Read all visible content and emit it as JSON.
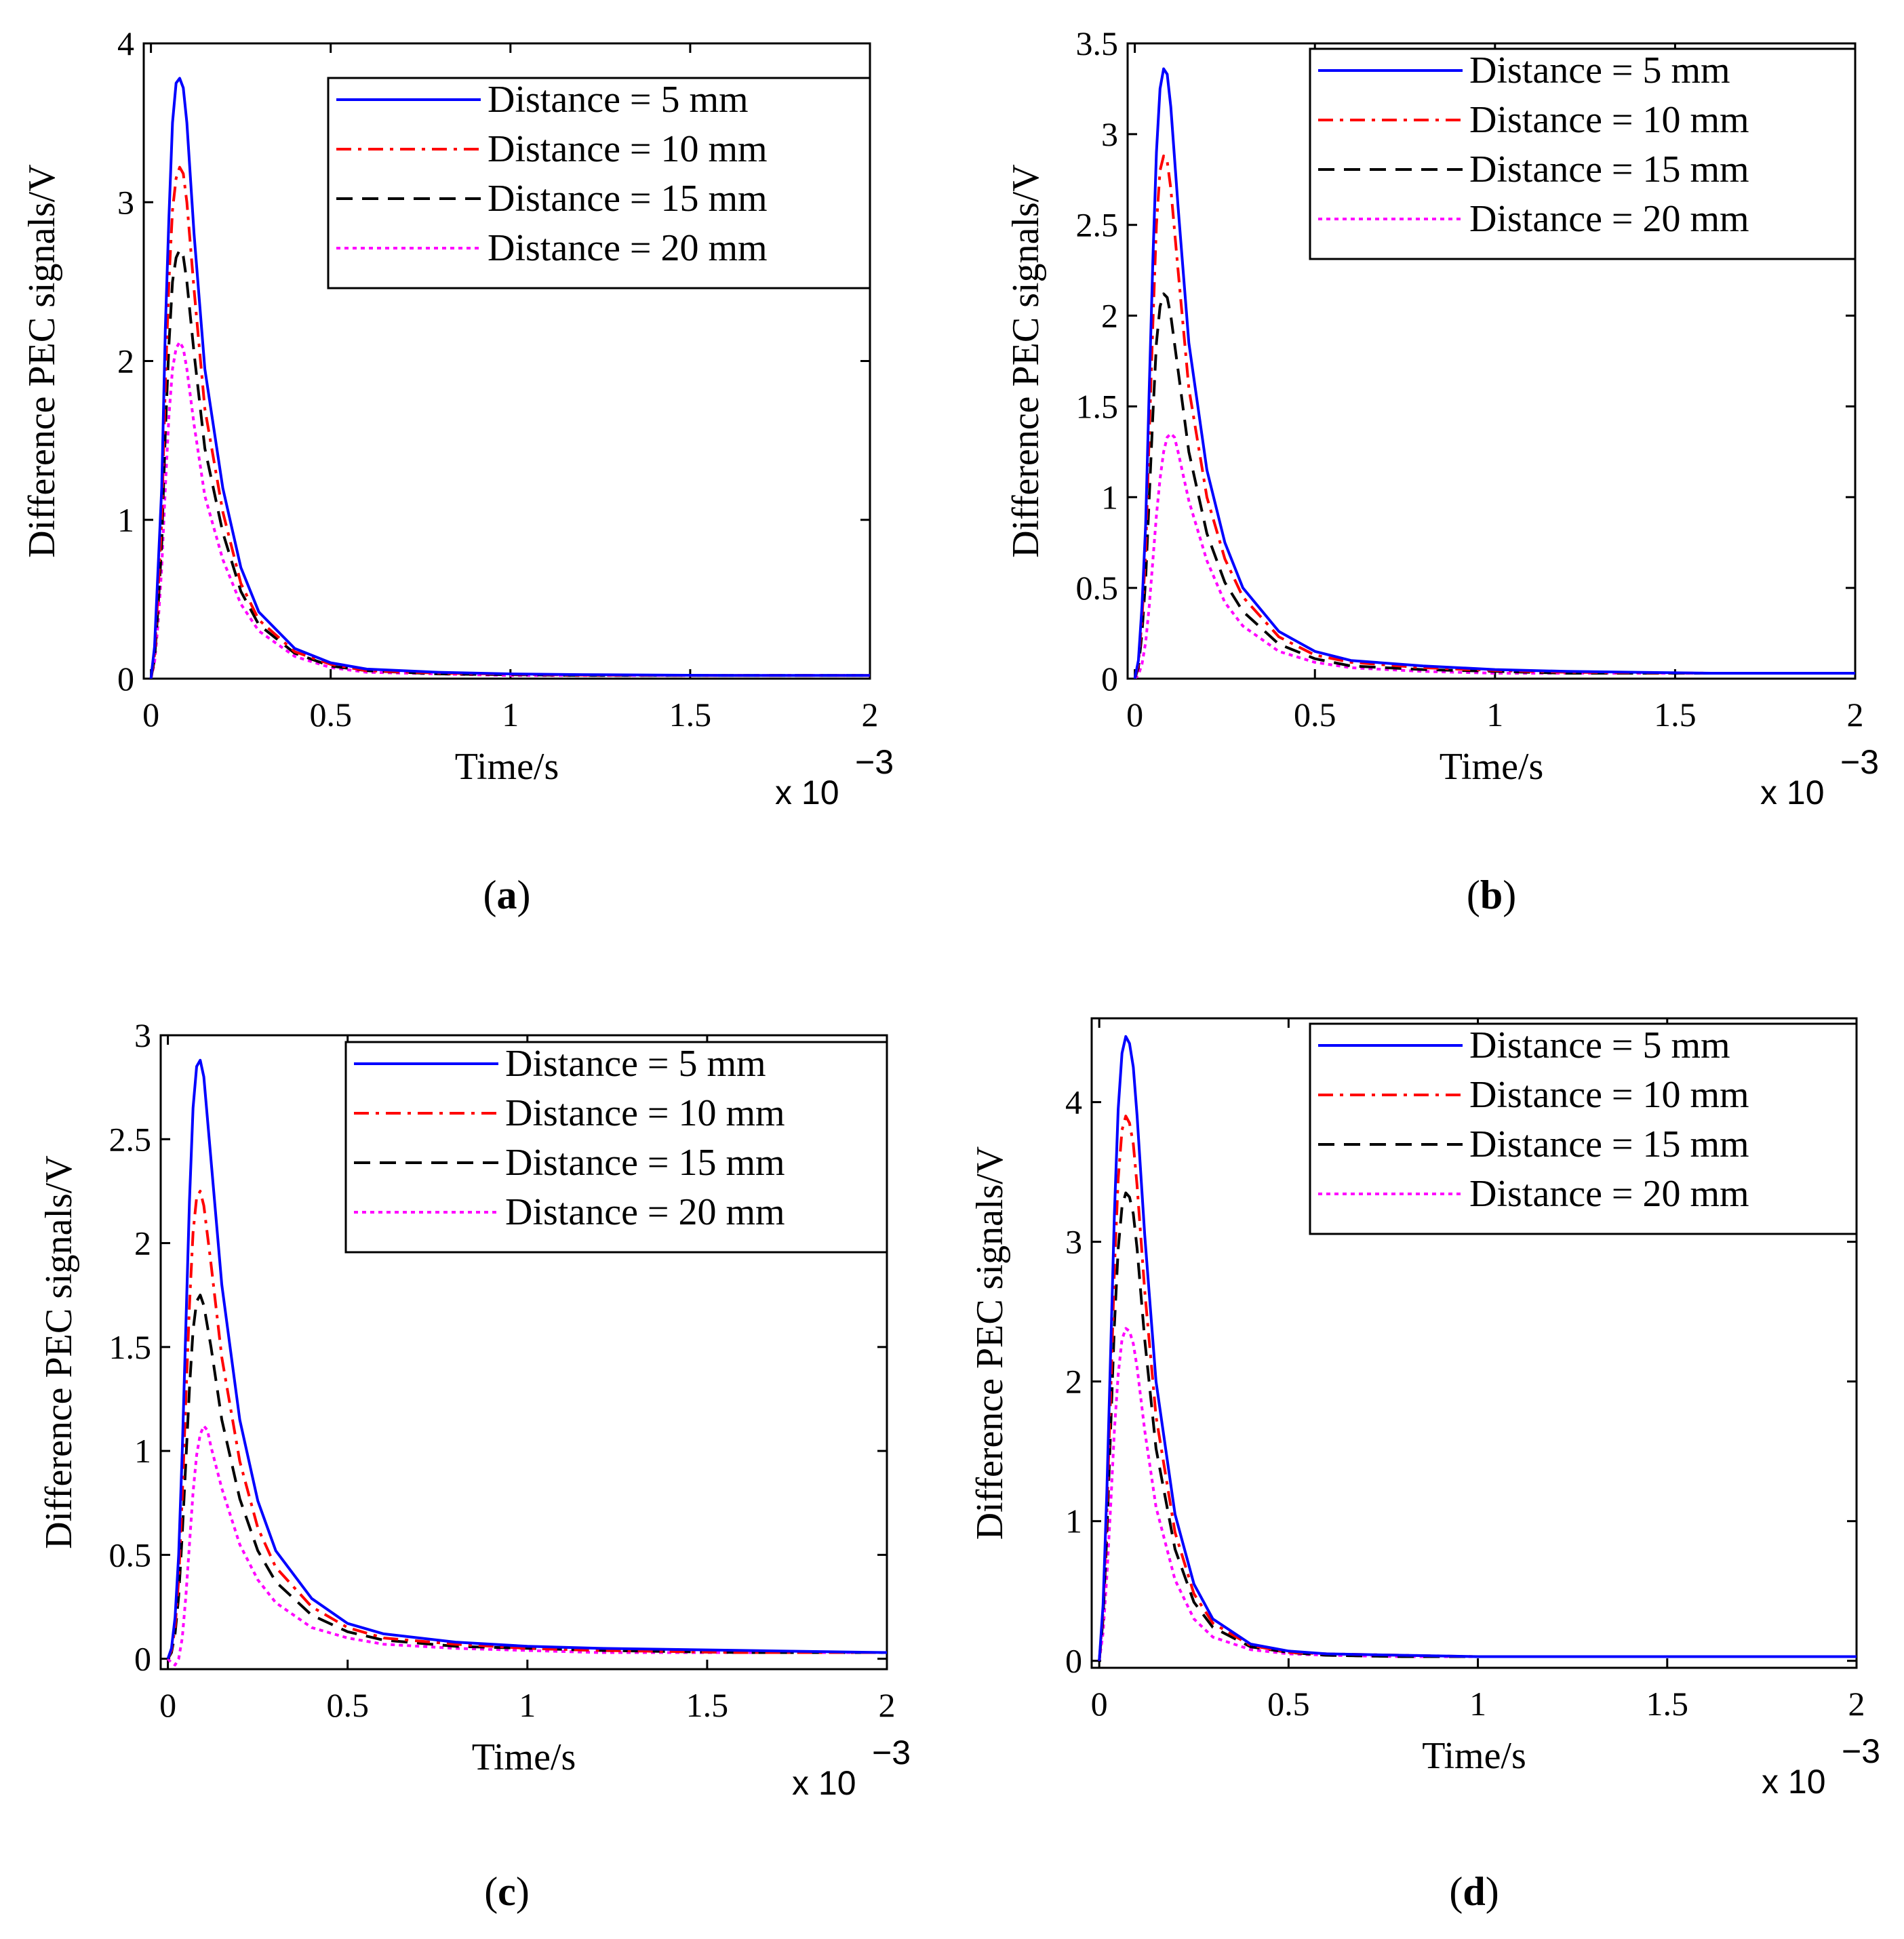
{
  "chart_data": [
    {
      "type": "line",
      "panel_label": "a",
      "xlabel": "Time/s",
      "ylabel": "Difference PEC signals/V",
      "x_multiplier": "x 10",
      "x_multiplier_exp": "−3",
      "xlim": [
        -0.02,
        2
      ],
      "ylim": [
        0,
        4
      ],
      "xticks": [
        0,
        0.5,
        1,
        1.5,
        2
      ],
      "xtick_labels": [
        "0",
        "0.5",
        "1",
        "1.5",
        "2"
      ],
      "yticks": [
        0,
        1,
        2,
        3,
        4
      ],
      "ytick_labels": [
        "0",
        "1",
        "2",
        "3",
        "4"
      ],
      "legend_position": "top-right",
      "series": [
        {
          "name": "Distance = 5 mm",
          "color": "#0000ff",
          "dash": "solid",
          "x": [
            0,
            0.01,
            0.02,
            0.03,
            0.04,
            0.05,
            0.06,
            0.07,
            0.08,
            0.09,
            0.1,
            0.12,
            0.15,
            0.2,
            0.25,
            0.3,
            0.4,
            0.5,
            0.6,
            0.8,
            1.0,
            1.2,
            1.6,
            2.0
          ],
          "values": [
            0,
            0.2,
            0.7,
            1.2,
            2.2,
            2.9,
            3.5,
            3.75,
            3.78,
            3.72,
            3.5,
            2.8,
            1.95,
            1.2,
            0.7,
            0.42,
            0.19,
            0.1,
            0.06,
            0.04,
            0.03,
            0.025,
            0.02,
            0.02
          ]
        },
        {
          "name": "Distance = 10 mm",
          "color": "#ff0000",
          "dash": "dashdot",
          "x": [
            0,
            0.01,
            0.02,
            0.03,
            0.04,
            0.05,
            0.06,
            0.07,
            0.08,
            0.09,
            0.1,
            0.12,
            0.15,
            0.2,
            0.25,
            0.3,
            0.4,
            0.5,
            0.6,
            0.8,
            1.0,
            1.2,
            1.6,
            2.0
          ],
          "values": [
            0,
            0.15,
            0.55,
            1.0,
            1.85,
            2.5,
            2.95,
            3.15,
            3.22,
            3.18,
            3.0,
            2.45,
            1.7,
            1.05,
            0.6,
            0.37,
            0.17,
            0.09,
            0.05,
            0.035,
            0.028,
            0.022,
            0.02,
            0.02
          ]
        },
        {
          "name": "Distance = 15 mm",
          "color": "#000000",
          "dash": "dash",
          "x": [
            0,
            0.01,
            0.02,
            0.03,
            0.04,
            0.05,
            0.06,
            0.07,
            0.08,
            0.09,
            0.1,
            0.12,
            0.15,
            0.2,
            0.25,
            0.3,
            0.4,
            0.5,
            0.6,
            0.8,
            1.0,
            1.2,
            1.6,
            2.0
          ],
          "values": [
            0,
            0.12,
            0.45,
            0.85,
            1.55,
            2.1,
            2.5,
            2.65,
            2.7,
            2.66,
            2.5,
            2.05,
            1.45,
            0.92,
            0.55,
            0.34,
            0.16,
            0.08,
            0.05,
            0.03,
            0.025,
            0.02,
            0.02,
            0.02
          ]
        },
        {
          "name": "Distance = 20 mm",
          "color": "#ff00ff",
          "dash": "dot",
          "x": [
            0,
            0.01,
            0.02,
            0.03,
            0.04,
            0.05,
            0.06,
            0.07,
            0.08,
            0.09,
            0.1,
            0.12,
            0.15,
            0.2,
            0.25,
            0.3,
            0.4,
            0.5,
            0.6,
            0.8,
            1.0,
            1.2,
            1.6,
            2.0
          ],
          "values": [
            0,
            0.1,
            0.35,
            0.7,
            1.2,
            1.65,
            1.95,
            2.08,
            2.12,
            2.08,
            1.95,
            1.6,
            1.15,
            0.75,
            0.47,
            0.3,
            0.14,
            0.07,
            0.04,
            0.03,
            0.02,
            0.02,
            0.02,
            0.02
          ]
        }
      ]
    },
    {
      "type": "line",
      "panel_label": "b",
      "xlabel": "Time/s",
      "ylabel": "Difference PEC signals/V",
      "x_multiplier": "x 10",
      "x_multiplier_exp": "−3",
      "xlim": [
        -0.02,
        2
      ],
      "ylim": [
        0,
        3.5
      ],
      "xticks": [
        0,
        0.5,
        1,
        1.5,
        2
      ],
      "xtick_labels": [
        "0",
        "0.5",
        "1",
        "1.5",
        "2"
      ],
      "yticks": [
        0,
        0.5,
        1,
        1.5,
        2,
        2.5,
        3,
        3.5
      ],
      "ytick_labels": [
        "0",
        "0.5",
        "1",
        "1.5",
        "2",
        "2.5",
        "3",
        "3.5"
      ],
      "legend_position": "top-right",
      "series": [
        {
          "name": "Distance = 5 mm",
          "color": "#0000ff",
          "dash": "solid",
          "x": [
            0,
            0.01,
            0.02,
            0.03,
            0.04,
            0.05,
            0.06,
            0.07,
            0.08,
            0.09,
            0.1,
            0.12,
            0.15,
            0.2,
            0.25,
            0.3,
            0.4,
            0.5,
            0.6,
            0.8,
            1.0,
            1.2,
            1.6,
            2.0
          ],
          "values": [
            0,
            0.1,
            0.4,
            0.85,
            1.6,
            2.3,
            2.9,
            3.25,
            3.36,
            3.33,
            3.15,
            2.6,
            1.85,
            1.15,
            0.75,
            0.5,
            0.26,
            0.15,
            0.1,
            0.07,
            0.05,
            0.04,
            0.03,
            0.03
          ]
        },
        {
          "name": "Distance = 10 mm",
          "color": "#ff0000",
          "dash": "dashdot",
          "x": [
            0,
            0.01,
            0.02,
            0.03,
            0.04,
            0.05,
            0.06,
            0.07,
            0.08,
            0.09,
            0.1,
            0.12,
            0.15,
            0.2,
            0.25,
            0.3,
            0.4,
            0.5,
            0.6,
            0.8,
            1.0,
            1.2,
            1.6,
            2.0
          ],
          "values": [
            0,
            0.08,
            0.33,
            0.7,
            1.35,
            1.95,
            2.5,
            2.8,
            2.88,
            2.85,
            2.7,
            2.25,
            1.6,
            1.0,
            0.66,
            0.45,
            0.23,
            0.13,
            0.09,
            0.06,
            0.045,
            0.035,
            0.03,
            0.03
          ]
        },
        {
          "name": "Distance = 15 mm",
          "color": "#000000",
          "dash": "dash",
          "x": [
            0,
            0.01,
            0.02,
            0.03,
            0.04,
            0.05,
            0.06,
            0.07,
            0.08,
            0.09,
            0.1,
            0.12,
            0.15,
            0.2,
            0.25,
            0.3,
            0.4,
            0.5,
            0.6,
            0.8,
            1.0,
            1.2,
            1.6,
            2.0
          ],
          "values": [
            0,
            0.06,
            0.25,
            0.55,
            1.0,
            1.45,
            1.85,
            2.05,
            2.12,
            2.1,
            2.0,
            1.7,
            1.25,
            0.8,
            0.53,
            0.37,
            0.19,
            0.11,
            0.07,
            0.05,
            0.04,
            0.03,
            0.03,
            0.03
          ]
        },
        {
          "name": "Distance = 20 mm",
          "color": "#ff00ff",
          "dash": "dot",
          "x": [
            0,
            0.01,
            0.02,
            0.03,
            0.04,
            0.05,
            0.06,
            0.07,
            0.08,
            0.09,
            0.1,
            0.11,
            0.12,
            0.15,
            0.2,
            0.25,
            0.3,
            0.4,
            0.5,
            0.6,
            0.8,
            1.0,
            1.2,
            1.6,
            2.0
          ],
          "values": [
            0,
            0.02,
            0.08,
            0.2,
            0.4,
            0.65,
            0.9,
            1.1,
            1.25,
            1.33,
            1.35,
            1.33,
            1.25,
            0.98,
            0.65,
            0.42,
            0.29,
            0.15,
            0.09,
            0.06,
            0.04,
            0.03,
            0.03,
            0.03,
            0.03
          ]
        }
      ]
    },
    {
      "type": "line",
      "panel_label": "c",
      "xlabel": "Time/s",
      "ylabel": "Difference PEC signals/V",
      "x_multiplier": "x 10",
      "x_multiplier_exp": "−3",
      "xlim": [
        -0.02,
        2
      ],
      "ylim": [
        -0.05,
        3
      ],
      "xticks": [
        0,
        0.5,
        1,
        1.5,
        2
      ],
      "xtick_labels": [
        "0",
        "0.5",
        "1",
        "1.5",
        "2"
      ],
      "yticks": [
        0,
        0.5,
        1,
        1.5,
        2,
        2.5,
        3
      ],
      "ytick_labels": [
        "0",
        "0.5",
        "1",
        "1.5",
        "2",
        "2.5",
        "3"
      ],
      "legend_position": "top-right",
      "series": [
        {
          "name": "Distance = 5 mm",
          "color": "#0000ff",
          "dash": "solid",
          "x": [
            0,
            0.01,
            0.02,
            0.03,
            0.04,
            0.05,
            0.06,
            0.07,
            0.08,
            0.09,
            0.1,
            0.12,
            0.15,
            0.2,
            0.25,
            0.3,
            0.4,
            0.5,
            0.6,
            0.8,
            1.0,
            1.2,
            1.6,
            2.0
          ],
          "values": [
            0,
            0.05,
            0.2,
            0.5,
            1.0,
            1.6,
            2.2,
            2.65,
            2.85,
            2.88,
            2.8,
            2.4,
            1.8,
            1.15,
            0.76,
            0.52,
            0.29,
            0.17,
            0.12,
            0.08,
            0.06,
            0.05,
            0.04,
            0.03
          ]
        },
        {
          "name": "Distance = 10 mm",
          "color": "#ff0000",
          "dash": "dashdot",
          "x": [
            0,
            0.01,
            0.02,
            0.03,
            0.04,
            0.05,
            0.06,
            0.07,
            0.08,
            0.09,
            0.1,
            0.12,
            0.15,
            0.2,
            0.25,
            0.3,
            0.4,
            0.5,
            0.6,
            0.8,
            1.0,
            1.2,
            1.6,
            2.0
          ],
          "values": [
            0,
            0.04,
            0.15,
            0.38,
            0.78,
            1.25,
            1.7,
            2.05,
            2.22,
            2.25,
            2.18,
            1.9,
            1.45,
            0.95,
            0.63,
            0.44,
            0.25,
            0.15,
            0.1,
            0.07,
            0.05,
            0.04,
            0.03,
            0.03
          ]
        },
        {
          "name": "Distance = 15 mm",
          "color": "#000000",
          "dash": "dash",
          "x": [
            0,
            0.01,
            0.02,
            0.03,
            0.04,
            0.05,
            0.06,
            0.07,
            0.08,
            0.09,
            0.1,
            0.12,
            0.15,
            0.2,
            0.25,
            0.3,
            0.4,
            0.5,
            0.6,
            0.8,
            1.0,
            1.2,
            1.6,
            2.0
          ],
          "values": [
            0,
            0.03,
            0.12,
            0.3,
            0.6,
            0.95,
            1.3,
            1.58,
            1.72,
            1.75,
            1.7,
            1.5,
            1.15,
            0.77,
            0.52,
            0.37,
            0.21,
            0.13,
            0.09,
            0.06,
            0.05,
            0.04,
            0.03,
            0.03
          ]
        },
        {
          "name": "Distance = 20 mm",
          "color": "#ff00ff",
          "dash": "dot",
          "x": [
            0,
            0.01,
            0.02,
            0.03,
            0.04,
            0.05,
            0.06,
            0.07,
            0.08,
            0.09,
            0.1,
            0.11,
            0.12,
            0.15,
            0.2,
            0.25,
            0.3,
            0.4,
            0.5,
            0.6,
            0.8,
            1.0,
            1.2,
            1.6,
            2.0
          ],
          "values": [
            0,
            -0.02,
            -0.03,
            0.0,
            0.1,
            0.3,
            0.55,
            0.8,
            0.98,
            1.08,
            1.12,
            1.1,
            1.02,
            0.82,
            0.55,
            0.38,
            0.27,
            0.15,
            0.1,
            0.07,
            0.05,
            0.04,
            0.03,
            0.03,
            0.03
          ]
        }
      ]
    },
    {
      "type": "line",
      "panel_label": "d",
      "xlabel": "Time/s",
      "ylabel": "Difference PEC signals/V",
      "x_multiplier": "x 10",
      "x_multiplier_exp": "−3",
      "xlim": [
        -0.02,
        2
      ],
      "ylim": [
        -0.05,
        4.6
      ],
      "xticks": [
        0,
        0.5,
        1,
        1.5,
        2
      ],
      "xtick_labels": [
        "0",
        "0.5",
        "1",
        "1.5",
        "2"
      ],
      "yticks": [
        0,
        1,
        2,
        3,
        4
      ],
      "ytick_labels": [
        "0",
        "1",
        "2",
        "3",
        "4"
      ],
      "legend_position": "top-right",
      "series": [
        {
          "name": "Distance = 5 mm",
          "color": "#0000ff",
          "dash": "solid",
          "x": [
            0,
            0.01,
            0.02,
            0.03,
            0.04,
            0.05,
            0.06,
            0.07,
            0.08,
            0.09,
            0.1,
            0.12,
            0.15,
            0.2,
            0.25,
            0.3,
            0.4,
            0.5,
            0.6,
            0.8,
            1.0,
            1.2,
            1.6,
            2.0
          ],
          "values": [
            0,
            0.4,
            1.2,
            2.2,
            3.2,
            3.95,
            4.35,
            4.47,
            4.42,
            4.25,
            3.9,
            3.05,
            2.0,
            1.05,
            0.55,
            0.3,
            0.12,
            0.07,
            0.05,
            0.04,
            0.03,
            0.03,
            0.03,
            0.03
          ]
        },
        {
          "name": "Distance = 10 mm",
          "color": "#ff0000",
          "dash": "dashdot",
          "x": [
            0,
            0.01,
            0.02,
            0.03,
            0.04,
            0.05,
            0.06,
            0.07,
            0.08,
            0.09,
            0.1,
            0.12,
            0.15,
            0.2,
            0.25,
            0.3,
            0.4,
            0.5,
            0.6,
            0.8,
            1.0,
            1.2,
            1.6,
            2.0
          ],
          "values": [
            0,
            0.35,
            1.05,
            1.9,
            2.8,
            3.45,
            3.8,
            3.9,
            3.85,
            3.7,
            3.4,
            2.65,
            1.75,
            0.92,
            0.48,
            0.27,
            0.11,
            0.06,
            0.05,
            0.04,
            0.03,
            0.03,
            0.03,
            0.03
          ]
        },
        {
          "name": "Distance = 15 mm",
          "color": "#000000",
          "dash": "dash",
          "x": [
            0,
            0.01,
            0.02,
            0.03,
            0.04,
            0.05,
            0.06,
            0.07,
            0.08,
            0.09,
            0.1,
            0.12,
            0.15,
            0.2,
            0.25,
            0.3,
            0.4,
            0.5,
            0.6,
            0.8,
            1.0,
            1.2,
            1.6,
            2.0
          ],
          "values": [
            0,
            0.3,
            0.9,
            1.65,
            2.4,
            2.95,
            3.25,
            3.35,
            3.32,
            3.2,
            2.95,
            2.3,
            1.52,
            0.8,
            0.42,
            0.24,
            0.1,
            0.06,
            0.04,
            0.03,
            0.03,
            0.03,
            0.03,
            0.03
          ]
        },
        {
          "name": "Distance = 20 mm",
          "color": "#ff00ff",
          "dash": "dot",
          "x": [
            0,
            0.01,
            0.02,
            0.03,
            0.04,
            0.05,
            0.06,
            0.07,
            0.08,
            0.09,
            0.1,
            0.12,
            0.15,
            0.2,
            0.25,
            0.3,
            0.4,
            0.5,
            0.6,
            0.8,
            1.0,
            1.2,
            1.6,
            2.0
          ],
          "values": [
            0,
            0.2,
            0.6,
            1.1,
            1.65,
            2.05,
            2.3,
            2.38,
            2.36,
            2.27,
            2.1,
            1.65,
            1.1,
            0.58,
            0.3,
            0.17,
            0.08,
            0.05,
            0.04,
            0.03,
            0.03,
            0.03,
            0.03,
            0.03
          ]
        }
      ]
    }
  ]
}
